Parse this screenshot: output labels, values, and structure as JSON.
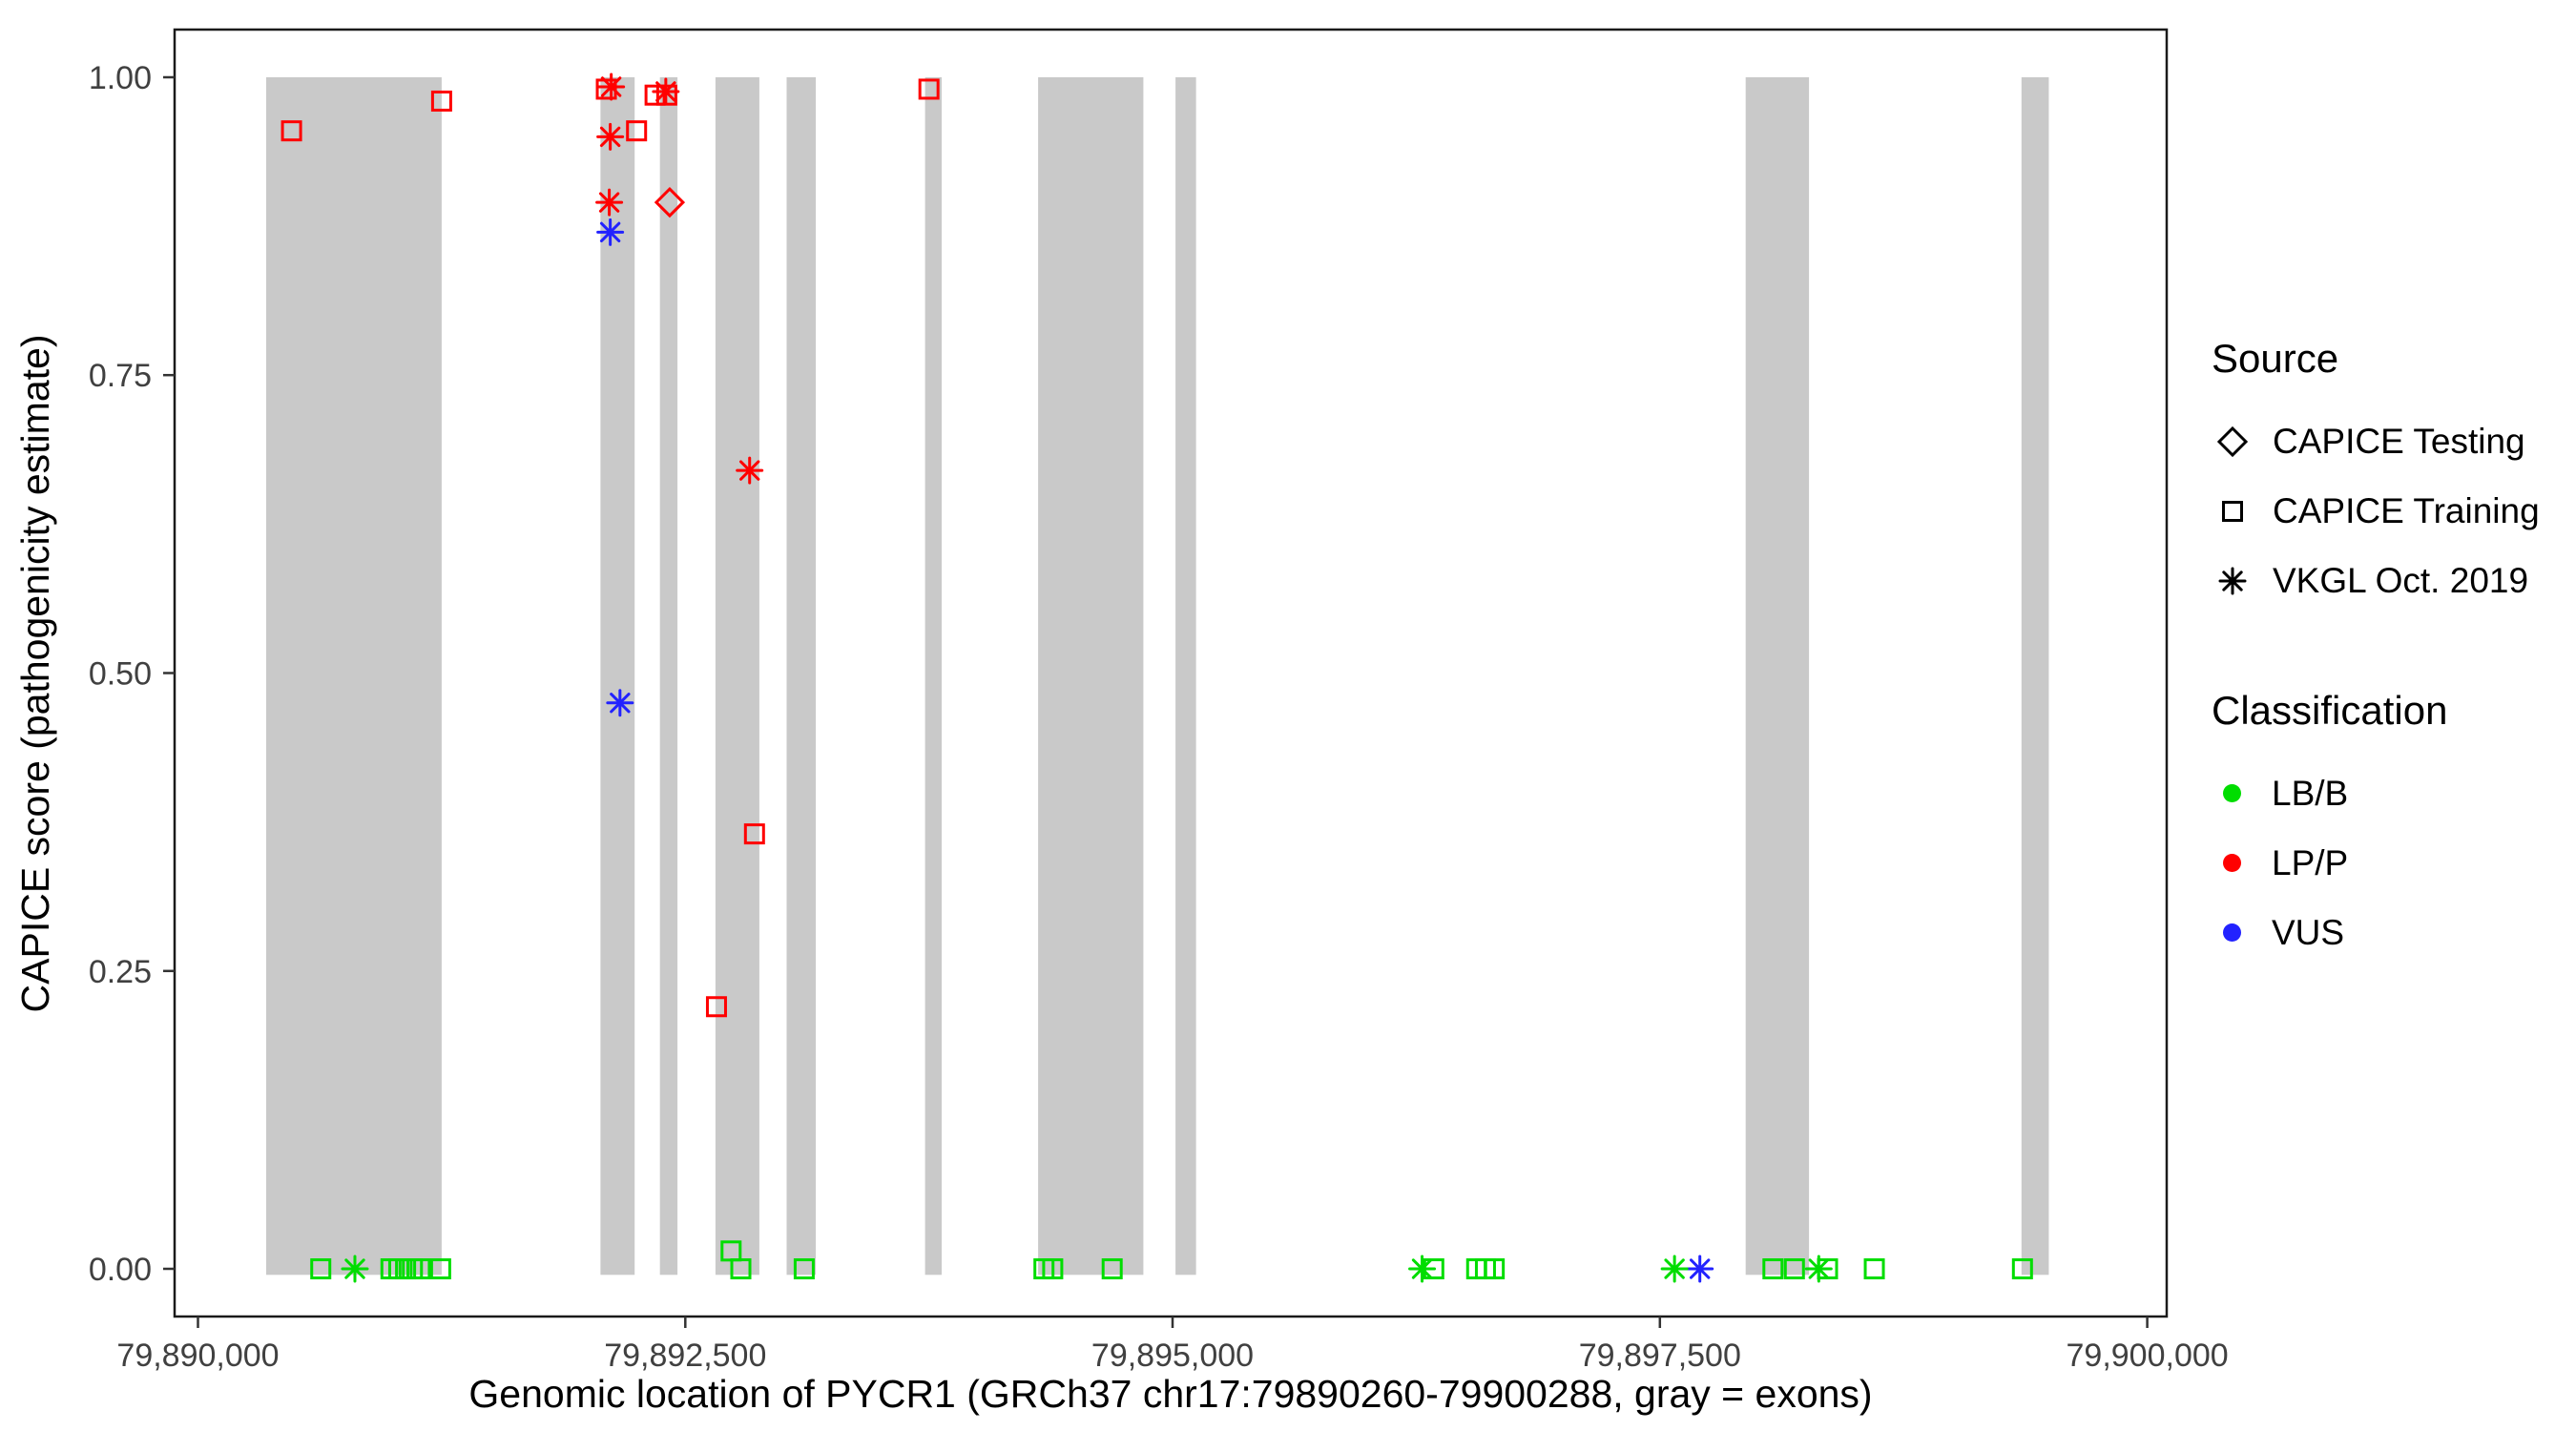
{
  "figure": {
    "background": "#ffffff"
  },
  "chart_data": {
    "type": "scatter",
    "title": "",
    "xlabel": "Genomic location of PYCR1 (GRCh37 chr17:79890260-79900288, gray = exons)",
    "ylabel": "CAPICE score (pathogenicity estimate)",
    "xlim": [
      79889880,
      79900100
    ],
    "ylim": [
      -0.04,
      1.04
    ],
    "grid": "off",
    "x_ticks": [
      {
        "value": 79890000,
        "label": "79,890,000"
      },
      {
        "value": 79892500,
        "label": "79,892,500"
      },
      {
        "value": 79895000,
        "label": "79,895,000"
      },
      {
        "value": 79897500,
        "label": "79,897,500"
      },
      {
        "value": 79900000,
        "label": "79,900,000"
      }
    ],
    "y_ticks": [
      {
        "value": 0.0,
        "label": "0.00"
      },
      {
        "value": 0.25,
        "label": "0.25"
      },
      {
        "value": 0.5,
        "label": "0.50"
      },
      {
        "value": 0.75,
        "label": "0.75"
      },
      {
        "value": 1.0,
        "label": "1.00"
      }
    ],
    "exon_color": "#c9c9c9",
    "exon_band_y": [
      -0.005,
      1.0
    ],
    "exons": [
      [
        79890350,
        79891250
      ],
      [
        79892065,
        79892240
      ],
      [
        79892370,
        79892460
      ],
      [
        79892655,
        79892880
      ],
      [
        79893020,
        79893170
      ],
      [
        79893730,
        79893815
      ],
      [
        79894310,
        79894850
      ],
      [
        79895015,
        79895120
      ],
      [
        79897940,
        79898265
      ],
      [
        79899355,
        79899495
      ]
    ],
    "classification_colors": {
      "LB/B": "#00dd00",
      "LP/P": "#ff0000",
      "VUS": "#2222ff"
    },
    "shape_by_source": {
      "testing": "diamond",
      "training": "square",
      "vkgl": "asterisk"
    },
    "points": [
      {
        "x": 79890480,
        "y": 0.955,
        "src": "training",
        "cls": "LP/P"
      },
      {
        "x": 79891250,
        "y": 0.98,
        "src": "training",
        "cls": "LP/P"
      },
      {
        "x": 79892095,
        "y": 0.99,
        "src": "training",
        "cls": "LP/P"
      },
      {
        "x": 79892120,
        "y": 0.992,
        "src": "vkgl",
        "cls": "LP/P"
      },
      {
        "x": 79892250,
        "y": 0.955,
        "src": "training",
        "cls": "LP/P"
      },
      {
        "x": 79892115,
        "y": 0.95,
        "src": "vkgl",
        "cls": "LP/P"
      },
      {
        "x": 79892110,
        "y": 0.895,
        "src": "vkgl",
        "cls": "LP/P"
      },
      {
        "x": 79892345,
        "y": 0.985,
        "src": "training",
        "cls": "LP/P"
      },
      {
        "x": 79892405,
        "y": 0.985,
        "src": "training",
        "cls": "LP/P"
      },
      {
        "x": 79892400,
        "y": 0.988,
        "src": "vkgl",
        "cls": "LP/P"
      },
      {
        "x": 79892420,
        "y": 0.895,
        "src": "testing",
        "cls": "LP/P"
      },
      {
        "x": 79893750,
        "y": 0.99,
        "src": "training",
        "cls": "LP/P"
      },
      {
        "x": 79892830,
        "y": 0.67,
        "src": "vkgl",
        "cls": "LP/P"
      },
      {
        "x": 79892855,
        "y": 0.365,
        "src": "training",
        "cls": "LP/P"
      },
      {
        "x": 79892660,
        "y": 0.22,
        "src": "training",
        "cls": "LP/P"
      },
      {
        "x": 79892115,
        "y": 0.87,
        "src": "vkgl",
        "cls": "VUS"
      },
      {
        "x": 79892165,
        "y": 0.475,
        "src": "vkgl",
        "cls": "VUS"
      },
      {
        "x": 79897705,
        "y": 0.0,
        "src": "vkgl",
        "cls": "VUS"
      },
      {
        "x": 79890630,
        "y": 0.0,
        "src": "training",
        "cls": "LB/B"
      },
      {
        "x": 79890805,
        "y": 0.0,
        "src": "vkgl",
        "cls": "LB/B"
      },
      {
        "x": 79890990,
        "y": 0.0,
        "src": "training",
        "cls": "LB/B"
      },
      {
        "x": 79891030,
        "y": 0.0,
        "src": "training",
        "cls": "LB/B"
      },
      {
        "x": 79891065,
        "y": 0.0,
        "src": "training",
        "cls": "LB/B"
      },
      {
        "x": 79891100,
        "y": 0.0,
        "src": "training",
        "cls": "LB/B"
      },
      {
        "x": 79891140,
        "y": 0.0,
        "src": "training",
        "cls": "LB/B"
      },
      {
        "x": 79891245,
        "y": 0.0,
        "src": "training",
        "cls": "LB/B"
      },
      {
        "x": 79892735,
        "y": 0.015,
        "src": "training",
        "cls": "LB/B"
      },
      {
        "x": 79892785,
        "y": 0.0,
        "src": "training",
        "cls": "LB/B"
      },
      {
        "x": 79893110,
        "y": 0.0,
        "src": "training",
        "cls": "LB/B"
      },
      {
        "x": 79894340,
        "y": 0.0,
        "src": "training",
        "cls": "LB/B"
      },
      {
        "x": 79894385,
        "y": 0.0,
        "src": "training",
        "cls": "LB/B"
      },
      {
        "x": 79894690,
        "y": 0.0,
        "src": "training",
        "cls": "LB/B"
      },
      {
        "x": 79896280,
        "y": 0.0,
        "src": "vkgl",
        "cls": "LB/B"
      },
      {
        "x": 79896340,
        "y": 0.0,
        "src": "training",
        "cls": "LB/B"
      },
      {
        "x": 79896560,
        "y": 0.0,
        "src": "training",
        "cls": "LB/B"
      },
      {
        "x": 79896605,
        "y": 0.0,
        "src": "training",
        "cls": "LB/B"
      },
      {
        "x": 79896650,
        "y": 0.0,
        "src": "training",
        "cls": "LB/B"
      },
      {
        "x": 79897575,
        "y": 0.0,
        "src": "vkgl",
        "cls": "LB/B"
      },
      {
        "x": 79898080,
        "y": 0.0,
        "src": "training",
        "cls": "LB/B"
      },
      {
        "x": 79898190,
        "y": 0.0,
        "src": "training",
        "cls": "LB/B"
      },
      {
        "x": 79898315,
        "y": 0.0,
        "src": "vkgl",
        "cls": "LB/B"
      },
      {
        "x": 79898360,
        "y": 0.0,
        "src": "training",
        "cls": "LB/B"
      },
      {
        "x": 79898600,
        "y": 0.0,
        "src": "training",
        "cls": "LB/B"
      },
      {
        "x": 79899360,
        "y": 0.0,
        "src": "training",
        "cls": "LB/B"
      }
    ],
    "legend": {
      "source_title": "Source",
      "source_items": [
        {
          "label": "CAPICE Testing",
          "shape": "diamond"
        },
        {
          "label": "CAPICE Training",
          "shape": "square"
        },
        {
          "label": "VKGL Oct. 2019",
          "shape": "asterisk"
        }
      ],
      "classification_title": "Classification",
      "classification_items": [
        {
          "label": "LB/B",
          "color": "#00dd00"
        },
        {
          "label": "LP/P",
          "color": "#ff0000"
        },
        {
          "label": "VUS",
          "color": "#2222ff"
        }
      ]
    }
  }
}
